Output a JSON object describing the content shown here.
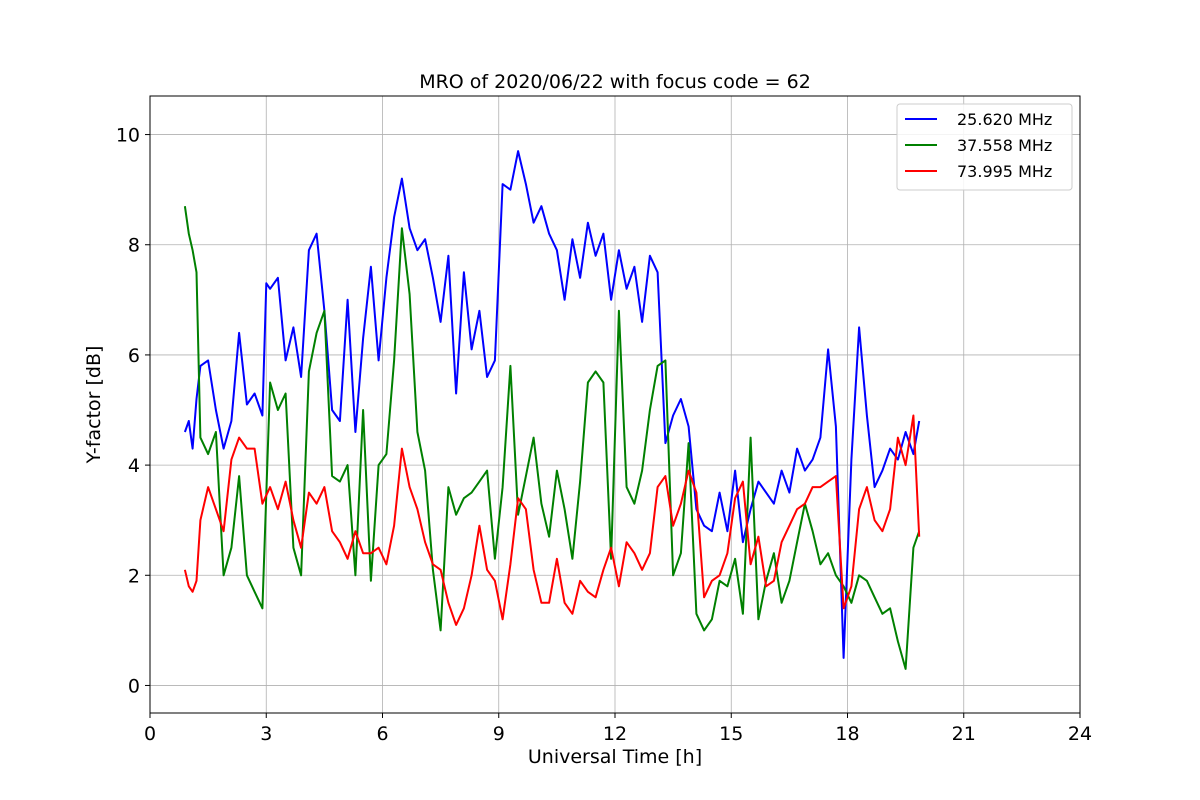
{
  "chart_data": {
    "type": "line",
    "title": "MRO of 2020/06/22 with focus code = 62",
    "xlabel": "Universal Time [h]",
    "ylabel": "Y-factor [dB]",
    "xlim": [
      0,
      24
    ],
    "ylim": [
      -0.5,
      10.7
    ],
    "xticks": [
      0,
      3,
      6,
      9,
      12,
      15,
      18,
      21,
      24
    ],
    "yticks": [
      0,
      2,
      4,
      6,
      8,
      10
    ],
    "grid": true,
    "legend_position": "top-right",
    "series": [
      {
        "name": "25.620 MHz",
        "color": "#0000ff",
        "x": [
          0.9,
          1.0,
          1.1,
          1.2,
          1.3,
          1.5,
          1.7,
          1.9,
          2.1,
          2.3,
          2.5,
          2.7,
          2.9,
          3.0,
          3.1,
          3.3,
          3.5,
          3.7,
          3.9,
          4.1,
          4.3,
          4.5,
          4.7,
          4.9,
          5.1,
          5.3,
          5.5,
          5.7,
          5.9,
          6.1,
          6.3,
          6.5,
          6.7,
          6.9,
          7.1,
          7.3,
          7.5,
          7.7,
          7.9,
          8.1,
          8.3,
          8.5,
          8.7,
          8.9,
          9.1,
          9.3,
          9.5,
          9.7,
          9.9,
          10.1,
          10.3,
          10.5,
          10.7,
          10.9,
          11.1,
          11.3,
          11.5,
          11.7,
          11.9,
          12.1,
          12.3,
          12.5,
          12.7,
          12.9,
          13.1,
          13.3,
          13.5,
          13.7,
          13.9,
          14.1,
          14.3,
          14.5,
          14.7,
          14.9,
          15.1,
          15.3,
          15.5,
          15.7,
          15.9,
          16.1,
          16.3,
          16.5,
          16.7,
          16.9,
          17.1,
          17.3,
          17.5,
          17.7,
          17.9,
          18.1,
          18.3,
          18.5,
          18.7,
          18.9,
          19.1,
          19.3,
          19.5,
          19.7,
          19.85
        ],
        "y": [
          4.6,
          4.8,
          4.3,
          5.2,
          5.8,
          5.9,
          5.0,
          4.3,
          4.8,
          6.4,
          5.1,
          5.3,
          4.9,
          7.3,
          7.2,
          7.4,
          5.9,
          6.5,
          5.6,
          7.9,
          8.2,
          6.8,
          5.0,
          4.8,
          7.0,
          4.6,
          6.3,
          7.6,
          5.9,
          7.4,
          8.5,
          9.2,
          8.3,
          7.9,
          8.1,
          7.4,
          6.6,
          7.8,
          5.3,
          7.5,
          6.1,
          6.8,
          5.6,
          5.9,
          9.1,
          9.0,
          9.7,
          9.1,
          8.4,
          8.7,
          8.2,
          7.9,
          7.0,
          8.1,
          7.4,
          8.4,
          7.8,
          8.2,
          7.0,
          7.9,
          7.2,
          7.6,
          6.6,
          7.8,
          7.5,
          4.4,
          4.9,
          5.2,
          4.7,
          3.2,
          2.9,
          2.8,
          3.5,
          2.8,
          3.9,
          2.6,
          3.2,
          3.7,
          3.5,
          3.3,
          3.9,
          3.5,
          4.3,
          3.9,
          4.1,
          4.5,
          6.1,
          4.7,
          0.5,
          4.1,
          6.5,
          4.9,
          3.6,
          3.9,
          4.3,
          4.1,
          4.6,
          4.2,
          4.8
        ]
      },
      {
        "name": "37.558 MHz",
        "color": "#008000",
        "x": [
          0.9,
          1.0,
          1.1,
          1.2,
          1.3,
          1.5,
          1.7,
          1.9,
          2.1,
          2.3,
          2.5,
          2.7,
          2.9,
          3.1,
          3.3,
          3.5,
          3.7,
          3.9,
          4.1,
          4.3,
          4.5,
          4.7,
          4.9,
          5.1,
          5.3,
          5.5,
          5.7,
          5.9,
          6.1,
          6.3,
          6.5,
          6.7,
          6.9,
          7.1,
          7.3,
          7.5,
          7.7,
          7.9,
          8.1,
          8.3,
          8.5,
          8.7,
          8.9,
          9.1,
          9.3,
          9.5,
          9.7,
          9.9,
          10.1,
          10.3,
          10.5,
          10.7,
          10.9,
          11.1,
          11.3,
          11.5,
          11.7,
          11.9,
          12.1,
          12.3,
          12.5,
          12.7,
          12.9,
          13.1,
          13.3,
          13.5,
          13.7,
          13.9,
          14.1,
          14.3,
          14.5,
          14.7,
          14.9,
          15.1,
          15.3,
          15.5,
          15.7,
          15.9,
          16.1,
          16.3,
          16.5,
          16.7,
          16.9,
          17.1,
          17.3,
          17.5,
          17.7,
          17.9,
          18.1,
          18.3,
          18.5,
          18.7,
          18.9,
          19.1,
          19.3,
          19.5,
          19.7,
          19.85
        ],
        "y": [
          8.7,
          8.2,
          7.9,
          7.5,
          4.5,
          4.2,
          4.6,
          2.0,
          2.5,
          3.8,
          2.0,
          1.7,
          1.4,
          5.5,
          5.0,
          5.3,
          2.5,
          2.0,
          5.7,
          6.4,
          6.8,
          3.8,
          3.7,
          4.0,
          2.0,
          5.0,
          1.9,
          4.0,
          4.2,
          5.9,
          8.3,
          7.1,
          4.6,
          3.9,
          2.1,
          1.0,
          3.6,
          3.1,
          3.4,
          3.5,
          3.7,
          3.9,
          2.3,
          3.6,
          5.8,
          3.1,
          3.8,
          4.5,
          3.3,
          2.7,
          3.9,
          3.2,
          2.3,
          3.7,
          5.5,
          5.7,
          5.5,
          2.3,
          6.8,
          3.6,
          3.3,
          3.9,
          5.0,
          5.8,
          5.9,
          2.0,
          2.4,
          4.4,
          1.3,
          1.0,
          1.2,
          1.9,
          1.8,
          2.3,
          1.3,
          4.5,
          1.2,
          1.9,
          2.4,
          1.5,
          1.9,
          2.6,
          3.3,
          2.8,
          2.2,
          2.4,
          2.0,
          1.8,
          1.5,
          2.0,
          1.9,
          1.6,
          1.3,
          1.4,
          0.8,
          0.3,
          2.5,
          2.8
        ]
      },
      {
        "name": "73.995 MHz",
        "color": "#ff0000",
        "x": [
          0.9,
          1.0,
          1.1,
          1.2,
          1.3,
          1.5,
          1.7,
          1.9,
          2.1,
          2.3,
          2.5,
          2.7,
          2.9,
          3.1,
          3.3,
          3.5,
          3.7,
          3.9,
          4.1,
          4.3,
          4.5,
          4.7,
          4.9,
          5.1,
          5.3,
          5.5,
          5.7,
          5.9,
          6.1,
          6.3,
          6.5,
          6.7,
          6.9,
          7.1,
          7.3,
          7.5,
          7.7,
          7.9,
          8.1,
          8.3,
          8.5,
          8.7,
          8.9,
          9.1,
          9.3,
          9.5,
          9.7,
          9.9,
          10.1,
          10.3,
          10.5,
          10.7,
          10.9,
          11.1,
          11.3,
          11.5,
          11.7,
          11.9,
          12.1,
          12.3,
          12.5,
          12.7,
          12.9,
          13.1,
          13.3,
          13.5,
          13.7,
          13.9,
          14.1,
          14.3,
          14.5,
          14.7,
          14.9,
          15.1,
          15.3,
          15.5,
          15.7,
          15.9,
          16.1,
          16.3,
          16.5,
          16.7,
          16.9,
          17.1,
          17.3,
          17.5,
          17.7,
          17.9,
          18.1,
          18.3,
          18.5,
          18.7,
          18.9,
          19.1,
          19.3,
          19.5,
          19.7,
          19.85
        ],
        "y": [
          2.1,
          1.8,
          1.7,
          1.9,
          3.0,
          3.6,
          3.2,
          2.8,
          4.1,
          4.5,
          4.3,
          4.3,
          3.3,
          3.6,
          3.2,
          3.7,
          3.0,
          2.5,
          3.5,
          3.3,
          3.6,
          2.8,
          2.6,
          2.3,
          2.8,
          2.4,
          2.4,
          2.5,
          2.2,
          2.9,
          4.3,
          3.6,
          3.2,
          2.6,
          2.2,
          2.1,
          1.5,
          1.1,
          1.4,
          2.0,
          2.9,
          2.1,
          1.9,
          1.2,
          2.2,
          3.4,
          3.2,
          2.1,
          1.5,
          1.5,
          2.3,
          1.5,
          1.3,
          1.9,
          1.7,
          1.6,
          2.1,
          2.5,
          1.8,
          2.6,
          2.4,
          2.1,
          2.4,
          3.6,
          3.8,
          2.9,
          3.3,
          3.9,
          3.5,
          1.6,
          1.9,
          2.0,
          2.4,
          3.4,
          3.7,
          2.2,
          2.7,
          1.8,
          1.9,
          2.6,
          2.9,
          3.2,
          3.3,
          3.6,
          3.6,
          3.7,
          3.8,
          1.4,
          1.8,
          3.2,
          3.6,
          3.0,
          2.8,
          3.2,
          4.5,
          4.0,
          4.9,
          2.7
        ]
      }
    ]
  }
}
